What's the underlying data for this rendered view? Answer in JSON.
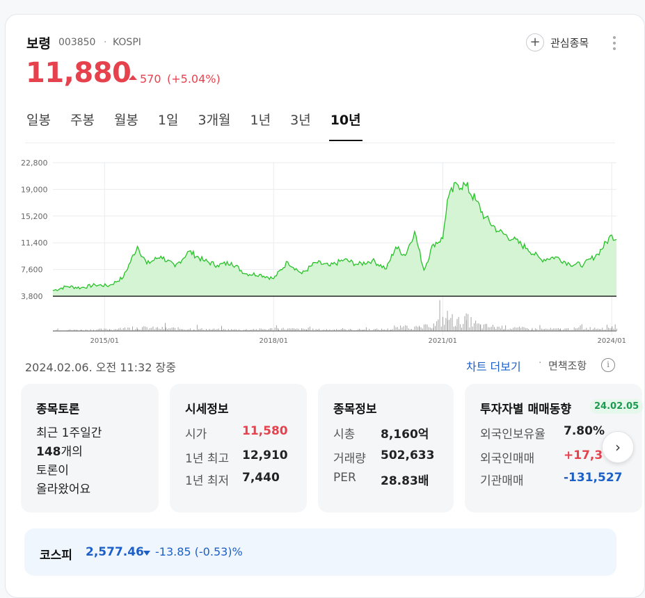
{
  "stock": {
    "name": "보령",
    "code": "003850",
    "market": "KOSPI",
    "price": "11,880",
    "change": "570",
    "change_pct": "(+5.04%)",
    "up_color": "#e5424d"
  },
  "watchlist_label": "관심종목",
  "tabs": [
    "일봉",
    "주봉",
    "월봉",
    "1일",
    "3개월",
    "1년",
    "3년",
    "10년"
  ],
  "active_tab": "10년",
  "chart_data": {
    "type": "area",
    "x_range": [
      "2014-02",
      "2024-02"
    ],
    "ylim": [
      3800,
      22800
    ],
    "y_ticks": [
      3800,
      7600,
      11400,
      15200,
      19000,
      22800
    ],
    "y_tick_labels": [
      "3,800",
      "7,600",
      "11,400",
      "15,200",
      "19,000",
      "22,800"
    ],
    "x_ticks": [
      "2015/01",
      "2018/01",
      "2021/01",
      "2024/01"
    ],
    "grid": true,
    "line_color": "#27c227",
    "fill_color": "#d4f4d4",
    "series": [
      {
        "x": [
          "2014-02",
          "2014-05",
          "2014-08",
          "2014-11",
          "2015-02",
          "2015-05",
          "2015-08",
          "2015-10",
          "2016-01",
          "2016-04",
          "2016-07",
          "2016-10",
          "2017-01",
          "2017-04",
          "2017-07",
          "2017-10",
          "2018-01",
          "2018-04",
          "2018-07",
          "2018-10",
          "2019-01",
          "2019-04",
          "2019-07",
          "2019-10",
          "2020-01",
          "2020-03",
          "2020-05",
          "2020-07",
          "2020-09",
          "2020-11",
          "2021-01",
          "2021-02",
          "2021-04",
          "2021-06",
          "2021-08",
          "2021-10",
          "2022-01",
          "2022-04",
          "2022-07",
          "2022-10",
          "2023-01",
          "2023-04",
          "2023-07",
          "2023-10",
          "2024-01",
          "2024-02"
        ],
        "values": [
          4600,
          5200,
          5000,
          5400,
          5300,
          6500,
          10900,
          8400,
          9500,
          8000,
          10200,
          8900,
          8200,
          8600,
          7000,
          6900,
          6300,
          8700,
          7000,
          8600,
          8100,
          9000,
          8300,
          8900,
          7700,
          10800,
          9600,
          13000,
          7500,
          11200,
          12000,
          17500,
          19800,
          19500,
          17500,
          15000,
          13000,
          11900,
          10600,
          9000,
          9400,
          8400,
          8300,
          9800,
          12500,
          11880
        ]
      }
    ],
    "volume": {
      "x": [
        "2014-02",
        "2014-08",
        "2015-02",
        "2015-08",
        "2016-02",
        "2016-08",
        "2017-02",
        "2017-08",
        "2018-02",
        "2018-08",
        "2019-02",
        "2019-08",
        "2020-02",
        "2020-05",
        "2020-08",
        "2020-11",
        "2021-02",
        "2021-04",
        "2021-06",
        "2021-09",
        "2022-02",
        "2022-08",
        "2023-02",
        "2023-08",
        "2024-01",
        "2024-02"
      ],
      "values": [
        8,
        7,
        12,
        22,
        18,
        14,
        10,
        9,
        16,
        11,
        9,
        10,
        12,
        30,
        22,
        40,
        95,
        60,
        78,
        34,
        25,
        14,
        13,
        18,
        30,
        40
      ]
    }
  },
  "timestamp": "2024.02.06. 오전 11:32 장중",
  "more_chart": "차트 더보기",
  "disclaimer": "면책조항",
  "discussion": {
    "title": "종목토론",
    "line1": "최근 1주일간",
    "count": "148",
    "line2": "개의",
    "line3": "토론이",
    "line4": "올라왔어요"
  },
  "quote": {
    "title": "시세정보",
    "rows": [
      {
        "label": "시가",
        "value": "11,580"
      },
      {
        "label": "1년 최고",
        "value": "12,910"
      },
      {
        "label": "1년 최저",
        "value": "7,440"
      }
    ]
  },
  "info": {
    "title": "종목정보",
    "rows": [
      {
        "label": "시총",
        "value": "8,160억"
      },
      {
        "label": "거래량",
        "value": "502,633"
      },
      {
        "label": "PER",
        "value": "28.83배"
      }
    ]
  },
  "investor": {
    "title": "투자자별 매매동향",
    "date": "24.02.05",
    "rows": [
      {
        "label": "외국인보유율",
        "value": "7.80%"
      },
      {
        "label": "외국인매매",
        "value": "+17,3"
      },
      {
        "label": "기관매매",
        "value": "-131,527"
      }
    ]
  },
  "kospi": {
    "name": "코스피",
    "value": "2,577.46",
    "change": "-13.85 (-0.53)%",
    "down_color": "#1c5fc7"
  }
}
